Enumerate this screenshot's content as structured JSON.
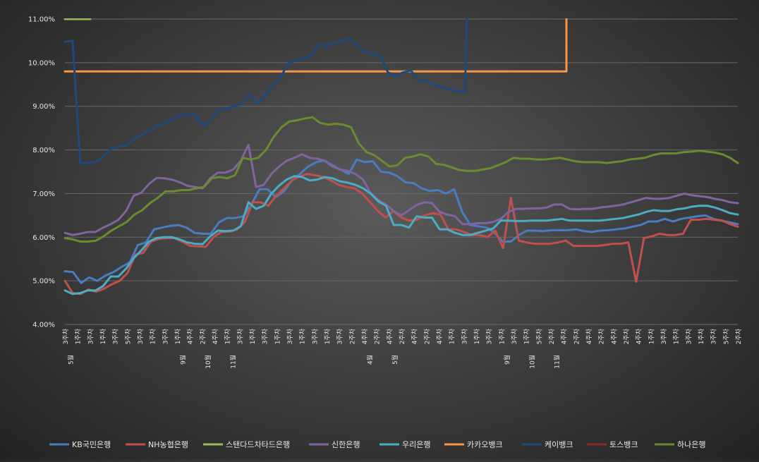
{
  "chart_data": {
    "type": "line",
    "title": "",
    "xlabel": "",
    "ylabel": "",
    "ylim": [
      4.0,
      11.0
    ],
    "y_ticks": [
      "4.00%",
      "5.00%",
      "6.00%",
      "7.00%",
      "8.00%",
      "9.00%",
      "10.00%",
      "11.00%"
    ],
    "grid": true,
    "legend_position": "bottom",
    "x_tick_labels": [
      "3주차",
      "1주차",
      "3주차",
      "1주차",
      "3주차",
      "5주차",
      "3주차",
      "1주차",
      "3주차",
      "1주차",
      "4주차",
      "2주차",
      "4주차",
      "1주차",
      "3주차",
      "1주차",
      "3주차",
      "1주차",
      "3주차",
      "1주차",
      "3주차",
      "1주차",
      "3주차",
      "2주차",
      "4주차",
      "2주차",
      "4주차",
      "2주차",
      "4주차",
      "2주차",
      "4주차",
      "1주차",
      "3주차",
      "1주차",
      "3주차",
      "1주차",
      "3주차",
      "1주차",
      "5주차",
      "2주차",
      "4주차",
      "2주차",
      "4주차",
      "2주차",
      "4주차",
      "2주차",
      "4주차",
      "1주차",
      "3주차",
      "1주차",
      "3주차",
      "1주차",
      "3주차",
      "5주차",
      "2주차"
    ],
    "x_month_labels": [
      "5월",
      "9월",
      "10월",
      "11월",
      "4월",
      "5월",
      "9월",
      "10월",
      "11월"
    ],
    "x_points": 70,
    "series": [
      {
        "name": "KB국민은행",
        "color": "#4a7cc0",
        "values": [
          5.22,
          5.2,
          4.95,
          5.08,
          5.0,
          5.12,
          5.2,
          5.32,
          5.42,
          5.82,
          5.88,
          6.18,
          6.22,
          6.26,
          6.28,
          6.22,
          6.1,
          6.08,
          6.08,
          6.34,
          6.44,
          6.44,
          6.48,
          6.75,
          7.1,
          7.1,
          6.92,
          7.05,
          7.3,
          7.45,
          7.62,
          7.72,
          7.76,
          7.65,
          7.55,
          7.45,
          7.78,
          7.72,
          7.74,
          7.5,
          7.48,
          7.4,
          7.26,
          7.24,
          7.12,
          7.06,
          7.08,
          7.0,
          7.1,
          6.58,
          6.28,
          6.25,
          6.22,
          6.1,
          5.9,
          5.9,
          6.05,
          6.15,
          6.15,
          6.14,
          6.16,
          6.16,
          6.16,
          6.18,
          6.14,
          6.12,
          6.15,
          6.16,
          6.18,
          6.2,
          6.24,
          6.28,
          6.36,
          6.36,
          6.42,
          6.36,
          6.42,
          6.45,
          6.48,
          6.5,
          6.42,
          6.38,
          6.34,
          6.3
        ]
      },
      {
        "name": "NH농협은행",
        "color": "#c0504d",
        "values": [
          5.0,
          4.72,
          4.7,
          4.8,
          4.75,
          4.82,
          4.92,
          5.0,
          5.18,
          5.6,
          5.64,
          5.9,
          5.96,
          5.98,
          5.98,
          5.9,
          5.8,
          5.79,
          5.78,
          6.0,
          6.12,
          6.13,
          6.18,
          6.35,
          6.8,
          6.8,
          6.72,
          6.95,
          7.12,
          7.3,
          7.4,
          7.45,
          7.42,
          7.38,
          7.3,
          7.2,
          7.15,
          7.12,
          7.0,
          6.8,
          6.6,
          6.45,
          6.6,
          6.45,
          6.38,
          6.4,
          6.5,
          6.55,
          6.52,
          6.18,
          6.18,
          6.12,
          6.05,
          6.05,
          6.0,
          6.15,
          5.75,
          6.9,
          5.92,
          5.88,
          5.85,
          5.85,
          5.85,
          5.88,
          5.92,
          5.8,
          5.8,
          5.8,
          5.8,
          5.82,
          5.85,
          5.85,
          5.88,
          4.98,
          5.98,
          6.02,
          6.08,
          6.05,
          6.05,
          6.08,
          6.4,
          6.4,
          6.42,
          6.4,
          6.38,
          6.3,
          6.24
        ]
      },
      {
        "name": "스탠다드차타드은행",
        "color": "#9bbb59",
        "values": [
          11.0,
          11.0,
          11.0
        ]
      },
      {
        "name": "신한은행",
        "color": "#8064a2",
        "values": [
          6.1,
          6.05,
          6.08,
          6.12,
          6.12,
          6.22,
          6.3,
          6.4,
          6.6,
          6.95,
          7.02,
          7.22,
          7.36,
          7.35,
          7.32,
          7.26,
          7.18,
          7.15,
          7.12,
          7.35,
          7.48,
          7.48,
          7.55,
          7.75,
          8.12,
          7.15,
          7.2,
          7.45,
          7.62,
          7.75,
          7.82,
          7.9,
          7.82,
          7.8,
          7.75,
          7.62,
          7.55,
          7.52,
          7.45,
          7.32,
          7.0,
          6.85,
          6.75,
          6.6,
          6.5,
          6.62,
          6.74,
          6.8,
          6.78,
          6.58,
          6.52,
          6.48,
          6.3,
          6.3,
          6.32,
          6.32,
          6.35,
          6.42,
          6.58,
          6.65,
          6.65,
          6.66,
          6.66,
          6.68,
          6.75,
          6.75,
          6.65,
          6.64,
          6.65,
          6.65,
          6.68,
          6.7,
          6.72,
          6.75,
          6.8,
          6.85,
          6.9,
          6.88,
          6.88,
          6.9,
          6.95,
          7.0,
          6.96,
          6.94,
          6.92,
          6.88,
          6.85,
          6.8,
          6.78
        ]
      },
      {
        "name": "우리은행",
        "color": "#4bacc6",
        "values": [
          4.78,
          4.7,
          4.72,
          4.78,
          4.78,
          4.88,
          5.1,
          5.1,
          5.28,
          5.52,
          5.7,
          5.9,
          5.98,
          6.0,
          6.0,
          5.95,
          5.88,
          5.85,
          5.84,
          6.02,
          6.15,
          6.14,
          6.15,
          6.25,
          6.8,
          6.65,
          6.72,
          7.0,
          7.18,
          7.32,
          7.4,
          7.38,
          7.3,
          7.32,
          7.38,
          7.35,
          7.28,
          7.25,
          7.2,
          7.12,
          7.0,
          6.82,
          6.72,
          6.28,
          6.28,
          6.22,
          6.48,
          6.45,
          6.45,
          6.18,
          6.18,
          6.1,
          6.05,
          6.05,
          6.1,
          6.15,
          6.2,
          6.38,
          6.38,
          6.37,
          6.37,
          6.38,
          6.38,
          6.38,
          6.4,
          6.42,
          6.38,
          6.38,
          6.38,
          6.38,
          6.38,
          6.4,
          6.42,
          6.44,
          6.48,
          6.52,
          6.58,
          6.62,
          6.6,
          6.6,
          6.64,
          6.66,
          6.7,
          6.72,
          6.72,
          6.68,
          6.62,
          6.55,
          6.52
        ]
      },
      {
        "name": "카카오뱅크",
        "color": "#f79646",
        "values": [
          9.8,
          9.8,
          9.8,
          9.8,
          9.8,
          9.8,
          9.8,
          9.8,
          9.8,
          9.8,
          9.8,
          9.8,
          9.8,
          9.8,
          9.8,
          9.8,
          9.8,
          9.8,
          9.8,
          9.8,
          9.8,
          9.8,
          9.8,
          9.8,
          9.8,
          9.8,
          9.8,
          9.8,
          9.8,
          9.8,
          9.8,
          9.8,
          9.8,
          9.8,
          9.8,
          9.8,
          9.8,
          9.8,
          9.8,
          9.8,
          9.8,
          9.8,
          9.8,
          9.8,
          9.8,
          9.8,
          9.8,
          9.8,
          9.8,
          9.8,
          9.8,
          9.8,
          9.8,
          9.8,
          9.8,
          9.8,
          9.8,
          9.8,
          9.8,
          9.8,
          9.8,
          9.8,
          9.8,
          9.8,
          9.8,
          9.8,
          11.0
        ]
      },
      {
        "name": "케이뱅크",
        "color": "#1f497d",
        "values": [
          10.48,
          10.5,
          7.7,
          7.7,
          7.72,
          7.85,
          8.02,
          8.08,
          8.1,
          8.25,
          8.35,
          8.45,
          8.55,
          8.62,
          8.7,
          8.8,
          8.8,
          8.8,
          8.55,
          8.72,
          8.92,
          8.95,
          9.0,
          9.05,
          9.28,
          9.05,
          9.25,
          9.45,
          9.65,
          9.98,
          10.05,
          10.1,
          10.15,
          10.42,
          10.38,
          10.45,
          10.5,
          10.55,
          10.4,
          10.25,
          10.2,
          10.15,
          9.78,
          9.7,
          9.78,
          9.82,
          9.6,
          9.6,
          9.48,
          9.45,
          9.38,
          9.35,
          9.32,
          11.0
        ]
      },
      {
        "name": "토스뱅크",
        "color": "#8b2b2b",
        "values": []
      },
      {
        "name": "하나은행",
        "color": "#6b8b2f",
        "values": [
          5.98,
          5.95,
          5.9,
          5.9,
          5.92,
          6.02,
          6.15,
          6.25,
          6.35,
          6.52,
          6.62,
          6.78,
          6.9,
          7.05,
          7.05,
          7.08,
          7.08,
          7.12,
          7.15,
          7.35,
          7.38,
          7.35,
          7.42,
          7.82,
          7.78,
          7.82,
          8.0,
          8.3,
          8.52,
          8.65,
          8.68,
          8.72,
          8.75,
          8.62,
          8.58,
          8.6,
          8.58,
          8.52,
          8.15,
          7.95,
          7.88,
          7.75,
          7.62,
          7.65,
          7.82,
          7.85,
          7.9,
          7.85,
          7.68,
          7.66,
          7.6,
          7.54,
          7.52,
          7.52,
          7.55,
          7.58,
          7.65,
          7.72,
          7.82,
          7.8,
          7.8,
          7.78,
          7.78,
          7.8,
          7.82,
          7.78,
          7.74,
          7.72,
          7.72,
          7.72,
          7.7,
          7.72,
          7.74,
          7.78,
          7.8,
          7.82,
          7.88,
          7.92,
          7.92,
          7.92,
          7.95,
          7.96,
          7.98,
          7.96,
          7.94,
          7.9,
          7.82,
          7.7
        ]
      }
    ]
  }
}
